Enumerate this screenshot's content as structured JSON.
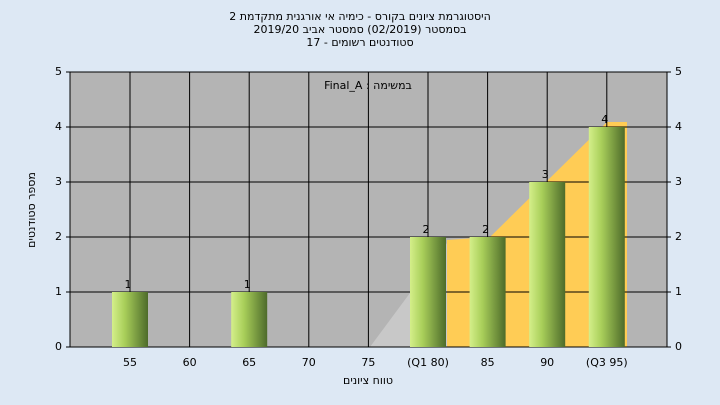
{
  "chart_data": {
    "type": "bar",
    "title": [
      "היסטוגרמת ציונים בקורס - כימיה אי אורגנית מתקדמת 2",
      "בסמסטר (02/2019) סמסטר אביב 2019/20",
      "סטודנטים רשומים - 17"
    ],
    "annotation": "במשימה : Final_A",
    "y_label": "מספר סטודנטים",
    "x_label": "טווח ציונים",
    "categories": [
      "55",
      "60",
      "65",
      "70",
      "75",
      "(Q1 80)",
      "85",
      "90",
      "(Q3 95)"
    ],
    "values": [
      1,
      0,
      1,
      0,
      0,
      2,
      2,
      3,
      4
    ],
    "ylim": [
      0,
      5
    ],
    "yticks": [
      0,
      1,
      2,
      3,
      4,
      5
    ],
    "y2lim": [
      0,
      5
    ],
    "y2ticks": [
      0,
      1,
      2,
      3,
      4,
      5
    ],
    "grid": true
  }
}
